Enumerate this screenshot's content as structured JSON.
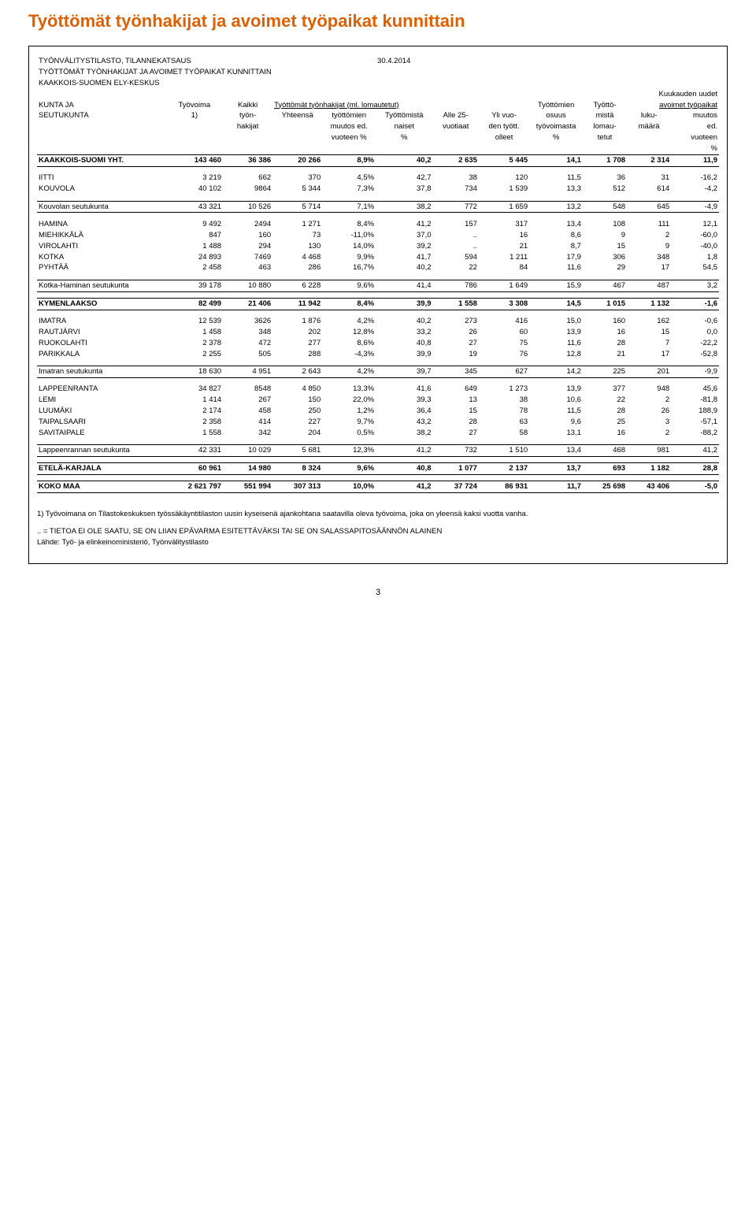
{
  "page": {
    "title": "Työttömät työnhakijat ja avoimet työpaikat kunnittain",
    "stat_line": "TYÖNVÄLITYSTILASTO, TILANNEKATSAUS",
    "stat_date": "30.4.2014",
    "sub_line": "TYÖTTÖMÄT TYÖNHAKIJAT JA AVOIMET TYÖPAIKAT KUNNITTAIN",
    "region": "KAAKKOIS-SUOMEN ELY-KESKUS",
    "kk_uudet": "Kuukauden uudet",
    "pagenum": "3"
  },
  "head": {
    "c0a": "KUNTA JA",
    "c0b": "SEUTUKUNTA",
    "c1a": "Työvoima",
    "c1b": "1)",
    "c2a": "Kaikki",
    "c2b": "työn-",
    "c2c": "hakijat",
    "c3a": "Työttömät työnhakijat (ml. lomautetut)",
    "c3b": "Yhteensä",
    "c4a": "työttömien",
    "c4b": "muutos ed.",
    "c4c": "vuoteen %",
    "c5a": "Työttömistä",
    "c5b": "naiset",
    "c5c": "%",
    "c6a": "Alle 25-",
    "c6b": "vuotiaat",
    "c7a": "Yli vuo-",
    "c7b": "den tyött.",
    "c7c": "olleet",
    "c8a": "Työttömien",
    "c8b": "osuus",
    "c8c": "työvoimasta",
    "c8d": "%",
    "c9a": "Työttö-",
    "c9b": "mistä",
    "c9c": "lomau-",
    "c9d": "tetut",
    "c10a": "avoimet työpaikat",
    "c10b": "luku-",
    "c10c": "määrä",
    "c11a": "muutos",
    "c11b": "ed.",
    "c11c": "vuoteen",
    "c11d": "%"
  },
  "rows": {
    "kks_yht": {
      "n": "KAAKKOIS-SUOMI YHT.",
      "v": [
        "143 460",
        "36 386",
        "20 266",
        "8,9%",
        "40,2",
        "2 635",
        "5 445",
        "14,1",
        "1 708",
        "2 314",
        "11,9"
      ]
    },
    "iitti": {
      "n": "IITTI",
      "v": [
        "3 219",
        "662",
        "370",
        "4,5%",
        "42,7",
        "38",
        "120",
        "11,5",
        "36",
        "31",
        "-16,2"
      ]
    },
    "kouvola": {
      "n": "KOUVOLA",
      "v": [
        "40 102",
        "9864",
        "5 344",
        "7,3%",
        "37,8",
        "734",
        "1 539",
        "13,3",
        "512",
        "614",
        "-4,2"
      ]
    },
    "kouv_sk": {
      "n": "Kouvolan seutukunta",
      "v": [
        "43 321",
        "10 526",
        "5 714",
        "7,1%",
        "38,2",
        "772",
        "1 659",
        "13,2",
        "548",
        "645",
        "-4,9"
      ]
    },
    "hamina": {
      "n": "HAMINA",
      "v": [
        "9 492",
        "2494",
        "1 271",
        "8,4%",
        "41,2",
        "157",
        "317",
        "13,4",
        "108",
        "111",
        "12,1"
      ]
    },
    "miehik": {
      "n": "MIEHIKKÄLÄ",
      "v": [
        "847",
        "160",
        "73",
        "-11,0%",
        "37,0",
        "..",
        "16",
        "8,6",
        "9",
        "2",
        "-60,0"
      ]
    },
    "virolahti": {
      "n": "VIROLAHTI",
      "v": [
        "1 488",
        "294",
        "130",
        "14,0%",
        "39,2",
        "..",
        "21",
        "8,7",
        "15",
        "9",
        "-40,0"
      ]
    },
    "kotka": {
      "n": "KOTKA",
      "v": [
        "24 893",
        "7469",
        "4 468",
        "9,9%",
        "41,7",
        "594",
        "1 211",
        "17,9",
        "306",
        "348",
        "1,8"
      ]
    },
    "pyhtaa": {
      "n": "PYHTÄÄ",
      "v": [
        "2 458",
        "463",
        "286",
        "16,7%",
        "40,2",
        "22",
        "84",
        "11,6",
        "29",
        "17",
        "54,5"
      ]
    },
    "kotka_sk": {
      "n": "Kotka-Haminan seutukunta",
      "v": [
        "39 178",
        "10 880",
        "6 228",
        "9,6%",
        "41,4",
        "786",
        "1 649",
        "15,9",
        "467",
        "487",
        "3,2"
      ]
    },
    "kymen": {
      "n": "KYMENLAAKSO",
      "v": [
        "82 499",
        "21 406",
        "11 942",
        "8,4%",
        "39,9",
        "1 558",
        "3 308",
        "14,5",
        "1 015",
        "1 132",
        "-1,6"
      ]
    },
    "imatra": {
      "n": "IMATRA",
      "v": [
        "12 539",
        "3626",
        "1 876",
        "4,2%",
        "40,2",
        "273",
        "416",
        "15,0",
        "160",
        "162",
        "-0,6"
      ]
    },
    "rautj": {
      "n": "RAUTJÄRVI",
      "v": [
        "1 458",
        "348",
        "202",
        "12,8%",
        "33,2",
        "26",
        "60",
        "13,9",
        "16",
        "15",
        "0,0"
      ]
    },
    "ruoko": {
      "n": "RUOKOLAHTI",
      "v": [
        "2 378",
        "472",
        "277",
        "8,6%",
        "40,8",
        "27",
        "75",
        "11,6",
        "28",
        "7",
        "-22,2"
      ]
    },
    "parik": {
      "n": "PARIKKALA",
      "v": [
        "2 255",
        "505",
        "288",
        "-4,3%",
        "39,9",
        "19",
        "76",
        "12,8",
        "21",
        "17",
        "-52,8"
      ]
    },
    "imatra_sk": {
      "n": "Imatran seutukunta",
      "v": [
        "18 630",
        "4 951",
        "2 643",
        "4,2%",
        "39,7",
        "345",
        "627",
        "14,2",
        "225",
        "201",
        "-9,9"
      ]
    },
    "lpr": {
      "n": "LAPPEENRANTA",
      "v": [
        "34 827",
        "8548",
        "4 850",
        "13,3%",
        "41,6",
        "649",
        "1 273",
        "13,9",
        "377",
        "948",
        "45,6"
      ]
    },
    "lemi": {
      "n": "LEMI",
      "v": [
        "1 414",
        "267",
        "150",
        "22,0%",
        "39,3",
        "13",
        "38",
        "10,6",
        "22",
        "2",
        "-81,8"
      ]
    },
    "luumaki": {
      "n": "LUUMÄKI",
      "v": [
        "2 174",
        "458",
        "250",
        "1,2%",
        "36,4",
        "15",
        "78",
        "11,5",
        "28",
        "26",
        "188,9"
      ]
    },
    "taipal": {
      "n": "TAIPALSAARI",
      "v": [
        "2 358",
        "414",
        "227",
        "9,7%",
        "43,2",
        "28",
        "63",
        "9,6",
        "25",
        "3",
        "-57,1"
      ]
    },
    "savit": {
      "n": "SAVITAIPALE",
      "v": [
        "1 558",
        "342",
        "204",
        "0,5%",
        "38,2",
        "27",
        "58",
        "13,1",
        "16",
        "2",
        "-88,2"
      ]
    },
    "lpr_sk": {
      "n": "Lappeenrannan seutukunta",
      "v": [
        "42 331",
        "10 029",
        "5 681",
        "12,3%",
        "41,2",
        "732",
        "1 510",
        "13,4",
        "468",
        "981",
        "41,2"
      ]
    },
    "ekarjala": {
      "n": "ETELÄ-KARJALA",
      "v": [
        "60 961",
        "14 980",
        "8 324",
        "9,6%",
        "40,8",
        "1 077",
        "2 137",
        "13,7",
        "693",
        "1 182",
        "28,8"
      ]
    },
    "koko_maa": {
      "n": "KOKO MAA",
      "v": [
        "2 621 797",
        "551 994",
        "307 313",
        "10,0%",
        "41,2",
        "37 724",
        "86 931",
        "11,7",
        "25 698",
        "43 406",
        "-5,0"
      ]
    }
  },
  "foot": {
    "l1": "1) Työvoimana on Tilastokeskuksen työssäkäyntitilaston uusin kyseisenä ajankohtana saatavilla oleva työvoima, joka on yleensä kaksi vuotta vanha.",
    "l2": ".. = TIETOA EI OLE SAATU, SE ON LIIAN EPÄVARMA ESITETTÄVÄKSI TAI SE ON SALASSAPITOSÄÄNNÖN ALAINEN",
    "l3": "Lähde: Työ- ja elinkeinoministeriö, Työnvälitystilasto"
  },
  "colors": {
    "title": "#e06000",
    "text": "#000000",
    "border": "#000000",
    "background": "#ffffff"
  }
}
